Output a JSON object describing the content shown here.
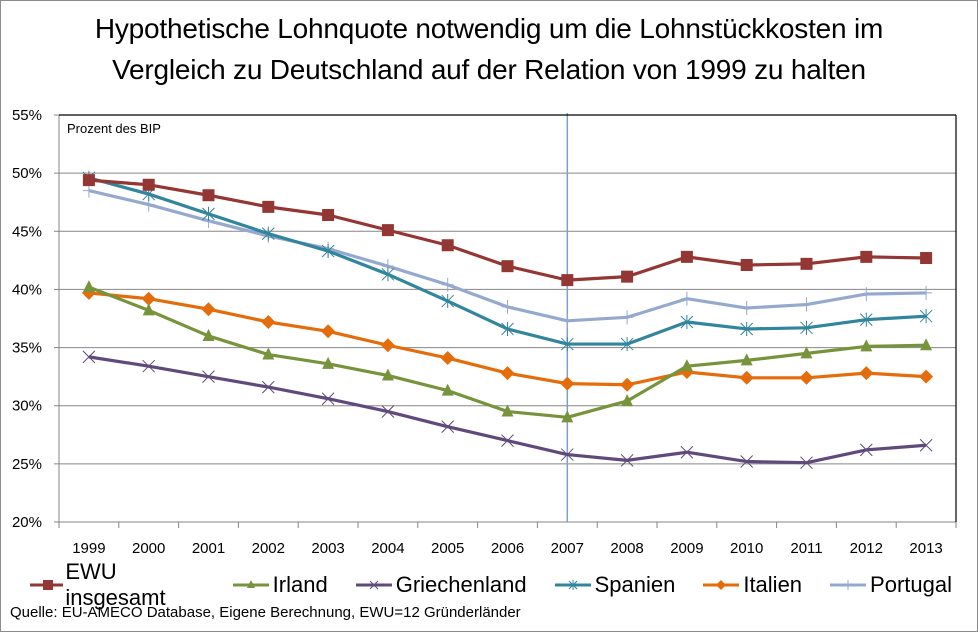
{
  "chart_data": {
    "type": "line",
    "title": "Hypothetische Lohnquote notwendig um die Lohnstückkosten im Vergleich zu Deutschland auf der Relation von 1999 zu halten",
    "title_lines": [
      "Hypothetische Lohnquote notwendig um die Lohnstückkosten im",
      "Vergleich zu Deutschland auf der Relation von 1999 zu halten"
    ],
    "xlabel": "",
    "ylabel": "",
    "y_unit_note": "Prozent des BIP",
    "ylim": [
      20,
      55
    ],
    "y_ticks": [
      20,
      25,
      30,
      35,
      40,
      45,
      50,
      55
    ],
    "y_tick_labels": [
      "20%",
      "25%",
      "30%",
      "35%",
      "40%",
      "45%",
      "50%",
      "55%"
    ],
    "grid": true,
    "legend_position": "bottom",
    "categories": [
      "1999",
      "2000",
      "2001",
      "2002",
      "2003",
      "2004",
      "2005",
      "2006",
      "2007",
      "2008",
      "2009",
      "2010",
      "2011",
      "2012",
      "2013"
    ],
    "annotations": [
      {
        "type": "vertical-line",
        "at": "2007",
        "color": "#7f9fc7"
      }
    ],
    "series": [
      {
        "name": "EWU insgesamt",
        "color": "#943634",
        "marker": "square",
        "values": [
          49.4,
          49.0,
          48.1,
          47.1,
          46.4,
          45.1,
          43.8,
          42.0,
          40.8,
          41.1,
          42.8,
          42.1,
          42.2,
          42.8,
          42.7
        ]
      },
      {
        "name": "Irland",
        "color": "#77933c",
        "marker": "triangle",
        "values": [
          40.2,
          38.2,
          36.0,
          34.4,
          33.6,
          32.6,
          31.3,
          29.5,
          29.0,
          30.4,
          33.4,
          33.9,
          34.5,
          35.1,
          35.2
        ]
      },
      {
        "name": "Griechenland",
        "color": "#604a7b",
        "marker": "x",
        "values": [
          34.2,
          33.4,
          32.5,
          31.6,
          30.6,
          29.5,
          28.2,
          27.0,
          25.8,
          25.3,
          26.0,
          25.2,
          25.1,
          26.2,
          26.6
        ]
      },
      {
        "name": "Spanien",
        "color": "#31859c",
        "marker": "star",
        "values": [
          49.6,
          48.2,
          46.5,
          44.8,
          43.3,
          41.3,
          39.0,
          36.6,
          35.3,
          35.3,
          37.2,
          36.6,
          36.7,
          37.4,
          37.7
        ]
      },
      {
        "name": "Italien",
        "color": "#e46c0a",
        "marker": "diamond",
        "values": [
          39.7,
          39.2,
          38.3,
          37.2,
          36.4,
          35.2,
          34.1,
          32.8,
          31.9,
          31.8,
          32.9,
          32.4,
          32.4,
          32.8,
          32.5
        ]
      },
      {
        "name": "Portugal",
        "color": "#95a9cf",
        "marker": "plus",
        "values": [
          48.5,
          47.3,
          45.9,
          44.6,
          43.5,
          42.0,
          40.4,
          38.5,
          37.3,
          37.6,
          39.2,
          38.4,
          38.7,
          39.6,
          39.7
        ]
      }
    ]
  },
  "source": "Quelle: EU-AMECO Database, Eigene Berechnung, EWU=12 Gründerländer"
}
